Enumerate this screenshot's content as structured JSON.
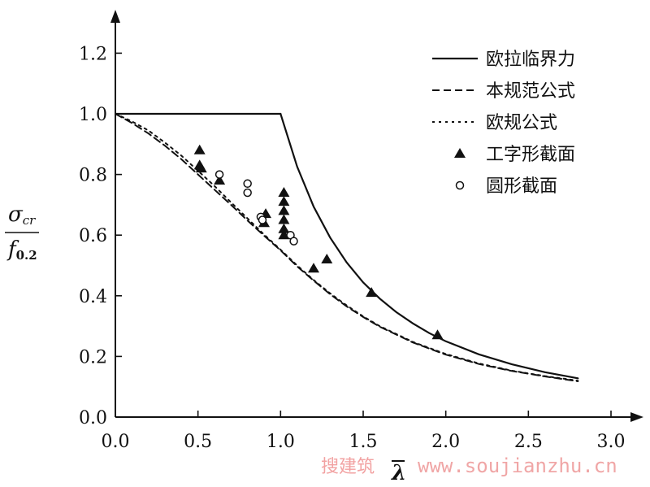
{
  "chart_data": {
    "type": "line",
    "x_axis": {
      "label_symbol": "λ",
      "range": [
        0.0,
        3.0
      ],
      "ticks": [
        "0.0",
        "0.5",
        "1.0",
        "1.5",
        "2.0",
        "2.5",
        "3.0"
      ]
    },
    "y_axis": {
      "label_numerator": "σcr",
      "label_numerator_main": "σ",
      "label_numerator_sub": "cr",
      "label_denominator_main": "f",
      "label_denominator_sub": "0.2",
      "range": [
        0.0,
        1.3
      ],
      "ticks": [
        "0.0",
        "0.2",
        "0.4",
        "0.6",
        "0.8",
        "1.0",
        "1.2"
      ]
    },
    "legend": {
      "position": "top-right",
      "entries": [
        {
          "label": "欧拉临界力",
          "style": "solid"
        },
        {
          "label": "本规范公式",
          "style": "dashed"
        },
        {
          "label": "欧规公式",
          "style": "dotted"
        },
        {
          "label": "工字形截面",
          "style": "triangle"
        },
        {
          "label": "圆形截面",
          "style": "circle"
        }
      ]
    },
    "series": [
      {
        "name": "欧拉临界力",
        "style": "solid",
        "points": [
          [
            0.0,
            1.0
          ],
          [
            0.2,
            1.0
          ],
          [
            0.4,
            1.0
          ],
          [
            0.6,
            1.0
          ],
          [
            0.8,
            1.0
          ],
          [
            1.0,
            1.0
          ],
          [
            1.1,
            0.826
          ],
          [
            1.2,
            0.694
          ],
          [
            1.3,
            0.592
          ],
          [
            1.4,
            0.51
          ],
          [
            1.5,
            0.444
          ],
          [
            1.6,
            0.391
          ],
          [
            1.7,
            0.346
          ],
          [
            1.8,
            0.309
          ],
          [
            1.9,
            0.277
          ],
          [
            2.0,
            0.25
          ],
          [
            2.2,
            0.207
          ],
          [
            2.4,
            0.174
          ],
          [
            2.6,
            0.148
          ],
          [
            2.8,
            0.128
          ]
        ]
      },
      {
        "name": "本规范公式",
        "style": "dashed",
        "points": [
          [
            0.0,
            1.0
          ],
          [
            0.1,
            0.97
          ],
          [
            0.2,
            0.935
          ],
          [
            0.3,
            0.895
          ],
          [
            0.4,
            0.85
          ],
          [
            0.5,
            0.8
          ],
          [
            0.6,
            0.75
          ],
          [
            0.7,
            0.7
          ],
          [
            0.8,
            0.648
          ],
          [
            0.9,
            0.598
          ],
          [
            1.0,
            0.55
          ],
          [
            1.1,
            0.497
          ],
          [
            1.2,
            0.45
          ],
          [
            1.3,
            0.405
          ],
          [
            1.4,
            0.365
          ],
          [
            1.5,
            0.33
          ],
          [
            1.6,
            0.298
          ],
          [
            1.8,
            0.246
          ],
          [
            2.0,
            0.206
          ],
          [
            2.2,
            0.175
          ],
          [
            2.4,
            0.152
          ],
          [
            2.6,
            0.134
          ],
          [
            2.8,
            0.118
          ]
        ]
      },
      {
        "name": "欧规公式",
        "style": "dotted",
        "points": [
          [
            0.0,
            1.0
          ],
          [
            0.1,
            0.975
          ],
          [
            0.2,
            0.945
          ],
          [
            0.3,
            0.905
          ],
          [
            0.4,
            0.862
          ],
          [
            0.5,
            0.812
          ],
          [
            0.6,
            0.762
          ],
          [
            0.7,
            0.708
          ],
          [
            0.8,
            0.655
          ],
          [
            0.9,
            0.602
          ],
          [
            1.0,
            0.552
          ],
          [
            1.1,
            0.5
          ],
          [
            1.2,
            0.452
          ],
          [
            1.3,
            0.408
          ],
          [
            1.4,
            0.368
          ],
          [
            1.5,
            0.332
          ],
          [
            1.6,
            0.3
          ],
          [
            1.8,
            0.248
          ],
          [
            2.0,
            0.208
          ],
          [
            2.2,
            0.177
          ],
          [
            2.4,
            0.153
          ],
          [
            2.6,
            0.135
          ],
          [
            2.8,
            0.12
          ]
        ]
      }
    ],
    "points": {
      "triangle": [
        [
          0.51,
          0.88
        ],
        [
          0.51,
          0.83
        ],
        [
          0.52,
          0.82
        ],
        [
          0.63,
          0.78
        ],
        [
          0.9,
          0.64
        ],
        [
          0.91,
          0.67
        ],
        [
          1.02,
          0.74
        ],
        [
          1.02,
          0.71
        ],
        [
          1.02,
          0.68
        ],
        [
          1.02,
          0.65
        ],
        [
          1.02,
          0.62
        ],
        [
          1.02,
          0.6
        ],
        [
          1.2,
          0.49
        ],
        [
          1.28,
          0.52
        ],
        [
          1.55,
          0.41
        ],
        [
          1.95,
          0.27
        ]
      ],
      "circle": [
        [
          0.63,
          0.8
        ],
        [
          0.8,
          0.77
        ],
        [
          0.8,
          0.74
        ],
        [
          0.88,
          0.66
        ],
        [
          0.89,
          0.65
        ],
        [
          1.06,
          0.6
        ],
        [
          1.08,
          0.58
        ]
      ]
    }
  },
  "watermark": {
    "cn": "搜建筑",
    "url": "www.soujianzhu.cn"
  }
}
